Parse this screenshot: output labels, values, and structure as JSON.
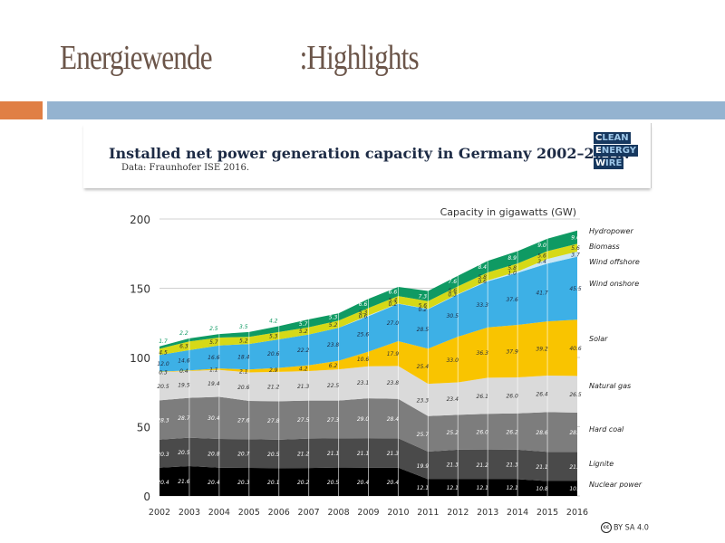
{
  "slide": {
    "title_part1": "Energiewende",
    "title_part2": ":Highlights"
  },
  "chart_header": {
    "title": "Installed net power generation capacity in Germany 2002–2016.",
    "subtitle": "Data: Fraunhofer ISE 2016.",
    "logo_lines": [
      {
        "first": "C",
        "rest": "LEAN"
      },
      {
        "first": "E",
        "rest": "NERGY"
      },
      {
        "first": "W",
        "rest": "IRE"
      }
    ],
    "license": "BY SA 4.0",
    "license_icon": "cc-icon"
  },
  "chart_data": {
    "type": "area",
    "stacked": true,
    "title": "Installed net power generation capacity in Germany 2002–2016.",
    "subtitle": "Data: Fraunhofer ISE 2016.",
    "unit_label": "Capacity in gigawatts (GW)",
    "xlabel": "",
    "ylabel": "Capacity in gigawatts (GW)",
    "ylim": [
      0,
      200
    ],
    "yticks": [
      0,
      50,
      100,
      150,
      200
    ],
    "grid": true,
    "legend": "right",
    "categories": [
      "2002",
      "2003",
      "2004",
      "2005",
      "2006",
      "2007",
      "2008",
      "2009",
      "2010",
      "2011",
      "2012",
      "2013",
      "2014",
      "2015",
      "2016"
    ],
    "series": [
      {
        "name": "Nuclear power",
        "color": "#000000",
        "label_color": "#ffffff",
        "values": [
          20.4,
          21.6,
          20.4,
          20.3,
          20.1,
          20.2,
          20.5,
          20.4,
          20.4,
          12.1,
          12.1,
          12.1,
          12.1,
          10.8,
          10.8
        ]
      },
      {
        "name": "Lignite",
        "color": "#4a4a4a",
        "label_color": "#ffffff",
        "values": [
          20.3,
          20.5,
          20.8,
          20.7,
          20.5,
          21.2,
          21.1,
          21.1,
          21.3,
          19.9,
          21.3,
          21.2,
          21.3,
          21.1,
          21.1
        ]
      },
      {
        "name": "Hard coal",
        "color": "#7d7d7d",
        "label_color": "#ffffff",
        "values": [
          28.3,
          28.7,
          30.4,
          27.6,
          27.8,
          27.5,
          27.3,
          29.0,
          28.4,
          25.7,
          25.2,
          26.0,
          26.2,
          28.6,
          28.3
        ]
      },
      {
        "name": "Natural gas",
        "color": "#dadada",
        "label_color": "#333333",
        "values": [
          20.5,
          19.5,
          19.4,
          20.6,
          21.2,
          21.3,
          22.5,
          23.1,
          23.8,
          23.3,
          23.4,
          26.1,
          26.0,
          26.4,
          26.5
        ]
      },
      {
        "name": "Solar",
        "color": "#f9c400",
        "label_color": "#333333",
        "values": [
          0.3,
          0.4,
          1.1,
          2.1,
          2.9,
          4.2,
          6.2,
          10.6,
          17.9,
          25.4,
          33.0,
          36.3,
          37.9,
          39.2,
          40.6
        ]
      },
      {
        "name": "Wind onshore",
        "color": "#3db0e6",
        "label_color": "#1d2b45",
        "values": [
          12.0,
          14.6,
          16.6,
          18.4,
          20.6,
          22.2,
          23.8,
          25.6,
          27.0,
          28.5,
          30.5,
          33.3,
          37.6,
          41.7,
          45.5
        ]
      },
      {
        "name": "Wind offshore",
        "color": "#c9e7f5",
        "label_color": "#1d2b45",
        "values": [
          0,
          0,
          0,
          0,
          0,
          0,
          0,
          0.6,
          0.2,
          0.2,
          0.3,
          0.6,
          1.0,
          3.4,
          3.7
        ]
      },
      {
        "name": "Biomass",
        "color": "#d6d917",
        "label_color": "#333333",
        "values": [
          4.5,
          6.3,
          5.7,
          5.2,
          5.3,
          5.2,
          5.2,
          5.3,
          5.4,
          5.6,
          5.6,
          5.8,
          5.8,
          5.6,
          5.6
        ]
      },
      {
        "name": "Hydropower",
        "color": "#0f9a63",
        "label_color": "#ffffff",
        "values": [
          1.7,
          2.2,
          2.5,
          3.5,
          4.2,
          5.7,
          5.3,
          6.6,
          6.6,
          7.3,
          7.6,
          8.4,
          8.9,
          9.0,
          9.6
        ]
      }
    ]
  }
}
